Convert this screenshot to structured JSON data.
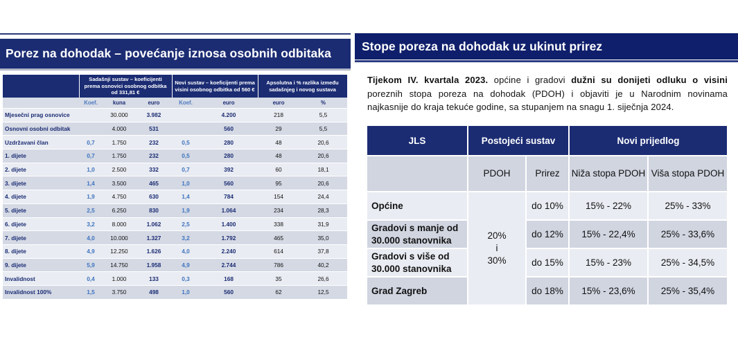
{
  "left": {
    "title": "Porez na dohodak – povećanje iznosa osobnih odbitaka",
    "header": {
      "group_current": "Sadašnji sustav – koeficijenti prema osnovici osobnog odbitka od 331,81 €",
      "group_new": "Novi sustav – koeficijenti prema visini osobnog odbitka od 560 €",
      "group_diff": "Apsolutna i % razlika između sadašnjeg i novog sustava",
      "sub": [
        "Koef.",
        "kuna",
        "euro",
        "Koef.",
        "euro",
        "euro",
        "%"
      ]
    },
    "rows": [
      {
        "label": "Mjesečni prag osnovice",
        "k1": "",
        "kuna": "30.000",
        "eur1": "3.982",
        "k2": "",
        "eur2": "4.200",
        "diff": "218",
        "pct": "5,5"
      },
      {
        "label": "Osnovni osobni odbitak",
        "k1": "",
        "kuna": "4.000",
        "eur1": "531",
        "k2": "",
        "eur2": "560",
        "diff": "29",
        "pct": "5,5"
      },
      {
        "label": "Uzdržavani član",
        "k1": "0,7",
        "kuna": "1.750",
        "eur1": "232",
        "k2": "0,5",
        "eur2": "280",
        "diff": "48",
        "pct": "20,6"
      },
      {
        "label": "1. dijete",
        "k1": "0,7",
        "kuna": "1.750",
        "eur1": "232",
        "k2": "0,5",
        "eur2": "280",
        "diff": "48",
        "pct": "20,6"
      },
      {
        "label": "2. dijete",
        "k1": "1,0",
        "kuna": "2.500",
        "eur1": "332",
        "k2": "0,7",
        "eur2": "392",
        "diff": "60",
        "pct": "18,1"
      },
      {
        "label": "3. dijete",
        "k1": "1,4",
        "kuna": "3.500",
        "eur1": "465",
        "k2": "1,0",
        "eur2": "560",
        "diff": "95",
        "pct": "20,6"
      },
      {
        "label": "4. dijete",
        "k1": "1,9",
        "kuna": "4.750",
        "eur1": "630",
        "k2": "1,4",
        "eur2": "784",
        "diff": "154",
        "pct": "24,4"
      },
      {
        "label": "5. dijete",
        "k1": "2,5",
        "kuna": "6.250",
        "eur1": "830",
        "k2": "1,9",
        "eur2": "1.064",
        "diff": "234",
        "pct": "28,3"
      },
      {
        "label": "6. dijete",
        "k1": "3,2",
        "kuna": "8.000",
        "eur1": "1.062",
        "k2": "2,5",
        "eur2": "1.400",
        "diff": "338",
        "pct": "31,9"
      },
      {
        "label": "7. dijete",
        "k1": "4,0",
        "kuna": "10.000",
        "eur1": "1.327",
        "k2": "3,2",
        "eur2": "1.792",
        "diff": "465",
        "pct": "35,0"
      },
      {
        "label": "8. dijete",
        "k1": "4,9",
        "kuna": "12.250",
        "eur1": "1.626",
        "k2": "4,0",
        "eur2": "2.240",
        "diff": "614",
        "pct": "37,8"
      },
      {
        "label": "9. dijete",
        "k1": "5,9",
        "kuna": "14.750",
        "eur1": "1.958",
        "k2": "4,9",
        "eur2": "2.744",
        "diff": "786",
        "pct": "40,2"
      },
      {
        "label": "Invalidnost",
        "k1": "0,4",
        "kuna": "1.000",
        "eur1": "133",
        "k2": "0,3",
        "eur2": "168",
        "diff": "35",
        "pct": "26,6"
      },
      {
        "label": "Invalidnost 100%",
        "k1": "1,5",
        "kuna": "3.750",
        "eur1": "498",
        "k2": "1,0",
        "eur2": "560",
        "diff": "62",
        "pct": "12,5"
      }
    ]
  },
  "right": {
    "title": "Stope poreza na dohodak uz ukinut prirez",
    "intro": {
      "l1_bold": "Tijekom IV. kvartala 2023.",
      "l1_a": " općine i gradovi ",
      "l1_bold2": "dužni su donijeti odluku o visini",
      "l2": "poreznih stopa poreza na dohodak (PDOH) i objaviti je u Narodnim novinama",
      "l3": "najkasnije do kraja tekuće godine, sa stupanjem na snagu 1. siječnja 2024."
    },
    "table": {
      "h_jls": "JLS",
      "h_current": "Postojeći sustav",
      "h_new": "Novi prijedlog",
      "h_pdoh": "PDOH",
      "h_prirez": "Prirez",
      "h_lower": "Niža stopa PDOH",
      "h_higher": "Viša stopa PDOH",
      "pdoh_value_top": "20%",
      "pdoh_value_mid": "i",
      "pdoh_value_bottom": "30%",
      "rows": [
        {
          "jls": "Općine",
          "prirez": "do 10%",
          "lower": "15% - 22%",
          "higher": "25% - 33%"
        },
        {
          "jls": "Gradovi s manje od 30.000 stanovnika",
          "prirez": "do 12%",
          "lower": "15% - 22,4%",
          "higher": "25% - 33,6%"
        },
        {
          "jls": "Gradovi s više od 30.000 stanovnika",
          "prirez": "do 15%",
          "lower": "15% - 23%",
          "higher": "25% - 34,5%"
        },
        {
          "jls": "Grad Zagreb",
          "prirez": "do 18%",
          "lower": "15% - 23,6%",
          "higher": "25% - 35,4%"
        }
      ]
    }
  }
}
